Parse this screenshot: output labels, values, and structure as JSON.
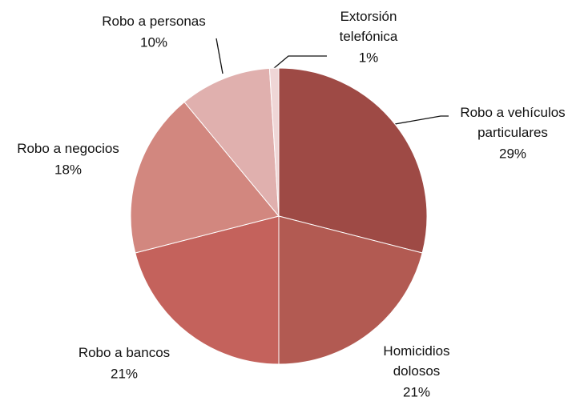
{
  "chart_data": {
    "type": "pie",
    "categories": [
      "Robo a vehículos\nparticulares",
      "Homicidios\ndolosos",
      "Robo a bancos",
      "Robo a negocios",
      "Robo a personas",
      "Extorsión\ntelefónica"
    ],
    "values": [
      29,
      21,
      21,
      18,
      10,
      1
    ],
    "value_labels": [
      "29%",
      "21%",
      "21%",
      "18%",
      "10%",
      "1%"
    ],
    "colors": [
      "#9e4a45",
      "#b25a52",
      "#c4625c",
      "#d2877f",
      "#e0b0ae",
      "#efd6d6"
    ]
  }
}
